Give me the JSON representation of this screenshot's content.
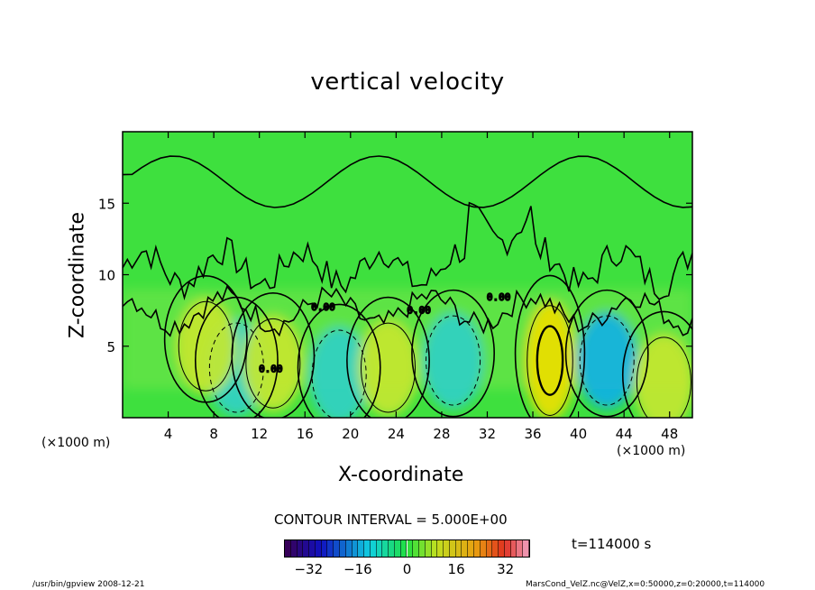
{
  "chart_data": {
    "type": "heatmap",
    "title": "vertical velocity",
    "xlabel": "X-coordinate",
    "ylabel": "Z-coordinate",
    "x_unit_label": "(×1000 m)",
    "xlim": [
      0,
      50
    ],
    "ylim": [
      0,
      20
    ],
    "x_ticks": [
      4,
      8,
      12,
      16,
      20,
      24,
      28,
      32,
      36,
      40,
      44,
      48
    ],
    "y_ticks": [
      5,
      10,
      15
    ],
    "contour_interval_label": "CONTOUR INTERVAL = 5.000E+00",
    "contour_labels": [
      "0.00",
      "0.00",
      "0.00",
      "0.00"
    ],
    "colorbar": {
      "range": [
        -40,
        40
      ],
      "ticks": [
        -32,
        -16,
        0,
        16,
        32
      ]
    },
    "features": [
      {
        "x": 37.5,
        "z": 4,
        "value": 15,
        "sign": "updraft"
      },
      {
        "x": 42.5,
        "z": 4,
        "value": -10,
        "sign": "downdraft"
      },
      {
        "x": 10,
        "z": 3.5,
        "value": -7,
        "sign": "downdraft"
      },
      {
        "x": 13.2,
        "z": 3.8,
        "value": 8,
        "sign": "updraft"
      },
      {
        "x": 19,
        "z": 3,
        "value": -7,
        "sign": "downdraft"
      },
      {
        "x": 23.3,
        "z": 3.5,
        "value": 9,
        "sign": "updraft"
      },
      {
        "x": 29,
        "z": 4,
        "value": -5,
        "sign": "downdraft"
      },
      {
        "x": 7.3,
        "z": 5,
        "value": 6,
        "sign": "updraft"
      },
      {
        "x": 47.5,
        "z": 2.5,
        "value": 6,
        "sign": "updraft"
      }
    ],
    "time_label": "t=114000 s",
    "colors": {
      "background": "#3ee03e",
      "neutral": "#3ee03e",
      "positive": "#e8e81a",
      "negative": "#18c8d8"
    }
  },
  "footer": {
    "left": "/usr/bin/gpview  2008-12-21",
    "right": "MarsCond_VelZ.nc@VelZ,x=0:50000,z=0:20000,t=114000"
  }
}
